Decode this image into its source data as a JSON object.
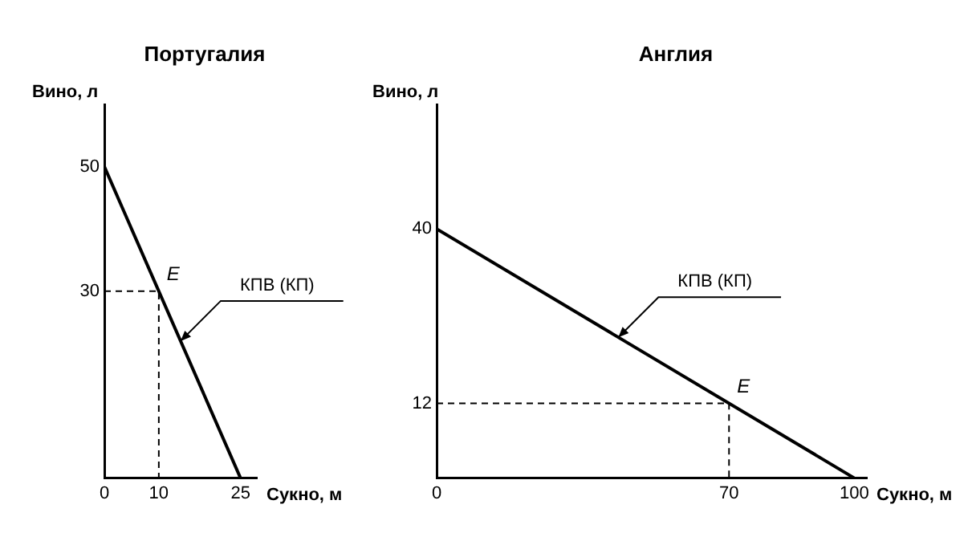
{
  "chart_data": [
    {
      "type": "line",
      "title": "Португалия",
      "xlabel": "Сукно, м",
      "ylabel": "Вино, л",
      "xlim": [
        0,
        28
      ],
      "ylim": [
        0,
        60
      ],
      "xticks": [
        0,
        10,
        25
      ],
      "yticks": [
        30,
        50
      ],
      "grid": false,
      "legend": false,
      "marker": "none",
      "annotations": [
        {
          "text": "E",
          "x": 10,
          "y": 30
        },
        {
          "text": "КПВ (КП)",
          "x": 14,
          "y": 22
        }
      ],
      "series": [
        {
          "color": "#000000",
          "x": [
            0,
            25
          ],
          "values": [
            50,
            0
          ],
          "line_style": "solid"
        },
        {
          "color": "#000000",
          "x": [
            0,
            10,
            10
          ],
          "values": [
            30,
            30,
            0
          ],
          "line_style": "dashed"
        }
      ]
    },
    {
      "type": "line",
      "title": "Англия",
      "xlabel": "Сукно, м",
      "ylabel": "Вино, л",
      "xlim": [
        0,
        103
      ],
      "ylim": [
        0,
        60
      ],
      "xticks": [
        0,
        70,
        100
      ],
      "yticks": [
        12,
        40
      ],
      "grid": false,
      "legend": false,
      "marker": "none",
      "annotations": [
        {
          "text": "E",
          "x": 70,
          "y": 12
        },
        {
          "text": "КПВ (КП)",
          "x": 43.5,
          "y": 22.6
        }
      ],
      "series": [
        {
          "color": "#000000",
          "x": [
            0,
            100
          ],
          "values": [
            40,
            0
          ],
          "line_style": "solid"
        },
        {
          "color": "#000000",
          "x": [
            0,
            70,
            70
          ],
          "values": [
            12,
            12,
            0
          ],
          "line_style": "dashed"
        }
      ]
    }
  ]
}
